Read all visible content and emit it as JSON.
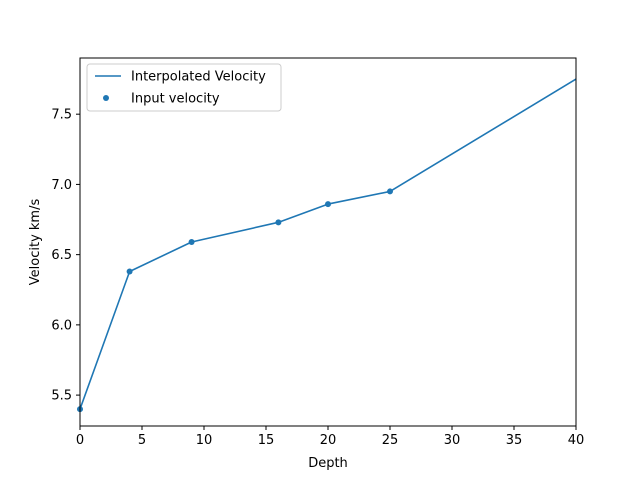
{
  "chart_data": {
    "type": "line",
    "title": "",
    "xlabel": "Depth",
    "ylabel": "Velocity km/s",
    "xlim": [
      0,
      40
    ],
    "ylim": [
      5.28,
      7.9
    ],
    "x_ticks": [
      0,
      5,
      10,
      15,
      20,
      25,
      30,
      35,
      40
    ],
    "y_ticks": [
      5.5,
      6.0,
      6.5,
      7.0,
      7.5
    ],
    "grid": false,
    "legend_position": "upper-left",
    "series": [
      {
        "name": "Interpolated Velocity",
        "kind": "line",
        "color": "#1f77b4",
        "x": [
          0,
          4,
          9,
          16,
          20,
          25,
          40
        ],
        "y": [
          5.4,
          6.38,
          6.59,
          6.73,
          6.86,
          6.95,
          7.75
        ]
      },
      {
        "name": "Input velocity",
        "kind": "scatter",
        "color": "#1f77b4",
        "x": [
          0,
          4,
          9,
          16,
          20,
          25
        ],
        "y": [
          5.4,
          6.38,
          6.59,
          6.73,
          6.86,
          6.95
        ]
      }
    ]
  }
}
